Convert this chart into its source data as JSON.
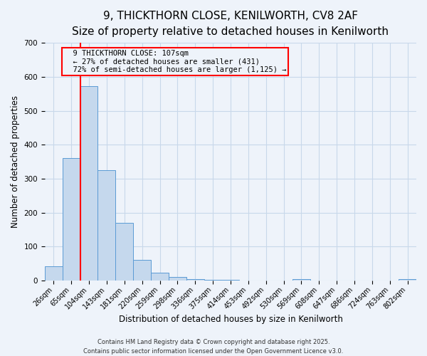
{
  "title": "9, THICKTHORN CLOSE, KENILWORTH, CV8 2AF",
  "subtitle": "Size of property relative to detached houses in Kenilworth",
  "xlabel": "Distribution of detached houses by size in Kenilworth",
  "ylabel": "Number of detached properties",
  "bar_labels": [
    "26sqm",
    "65sqm",
    "104sqm",
    "143sqm",
    "181sqm",
    "220sqm",
    "259sqm",
    "298sqm",
    "336sqm",
    "375sqm",
    "414sqm",
    "453sqm",
    "492sqm",
    "530sqm",
    "569sqm",
    "608sqm",
    "647sqm",
    "686sqm",
    "724sqm",
    "763sqm",
    "802sqm"
  ],
  "bar_values": [
    42,
    360,
    573,
    325,
    170,
    60,
    23,
    10,
    5,
    2,
    1,
    0,
    0,
    0,
    5,
    0,
    0,
    0,
    0,
    0,
    4
  ],
  "bar_color": "#c5d8ed",
  "bar_edge_color": "#5b9bd5",
  "ylim": [
    0,
    700
  ],
  "yticks": [
    0,
    100,
    200,
    300,
    400,
    500,
    600,
    700
  ],
  "red_line_bar_index": 2,
  "annotation_title": "9 THICKTHORN CLOSE: 107sqm",
  "annotation_line1": "← 27% of detached houses are smaller (431)",
  "annotation_line2": "72% of semi-detached houses are larger (1,125) →",
  "footer1": "Contains HM Land Registry data © Crown copyright and database right 2025.",
  "footer2": "Contains public sector information licensed under the Open Government Licence v3.0.",
  "bg_color": "#eef3fa",
  "grid_color": "#c8d8ea",
  "title_fontsize": 11,
  "subtitle_fontsize": 9.5,
  "tick_fontsize": 7,
  "ylabel_fontsize": 8.5,
  "xlabel_fontsize": 8.5,
  "footer_fontsize": 6,
  "annot_fontsize": 7.5
}
